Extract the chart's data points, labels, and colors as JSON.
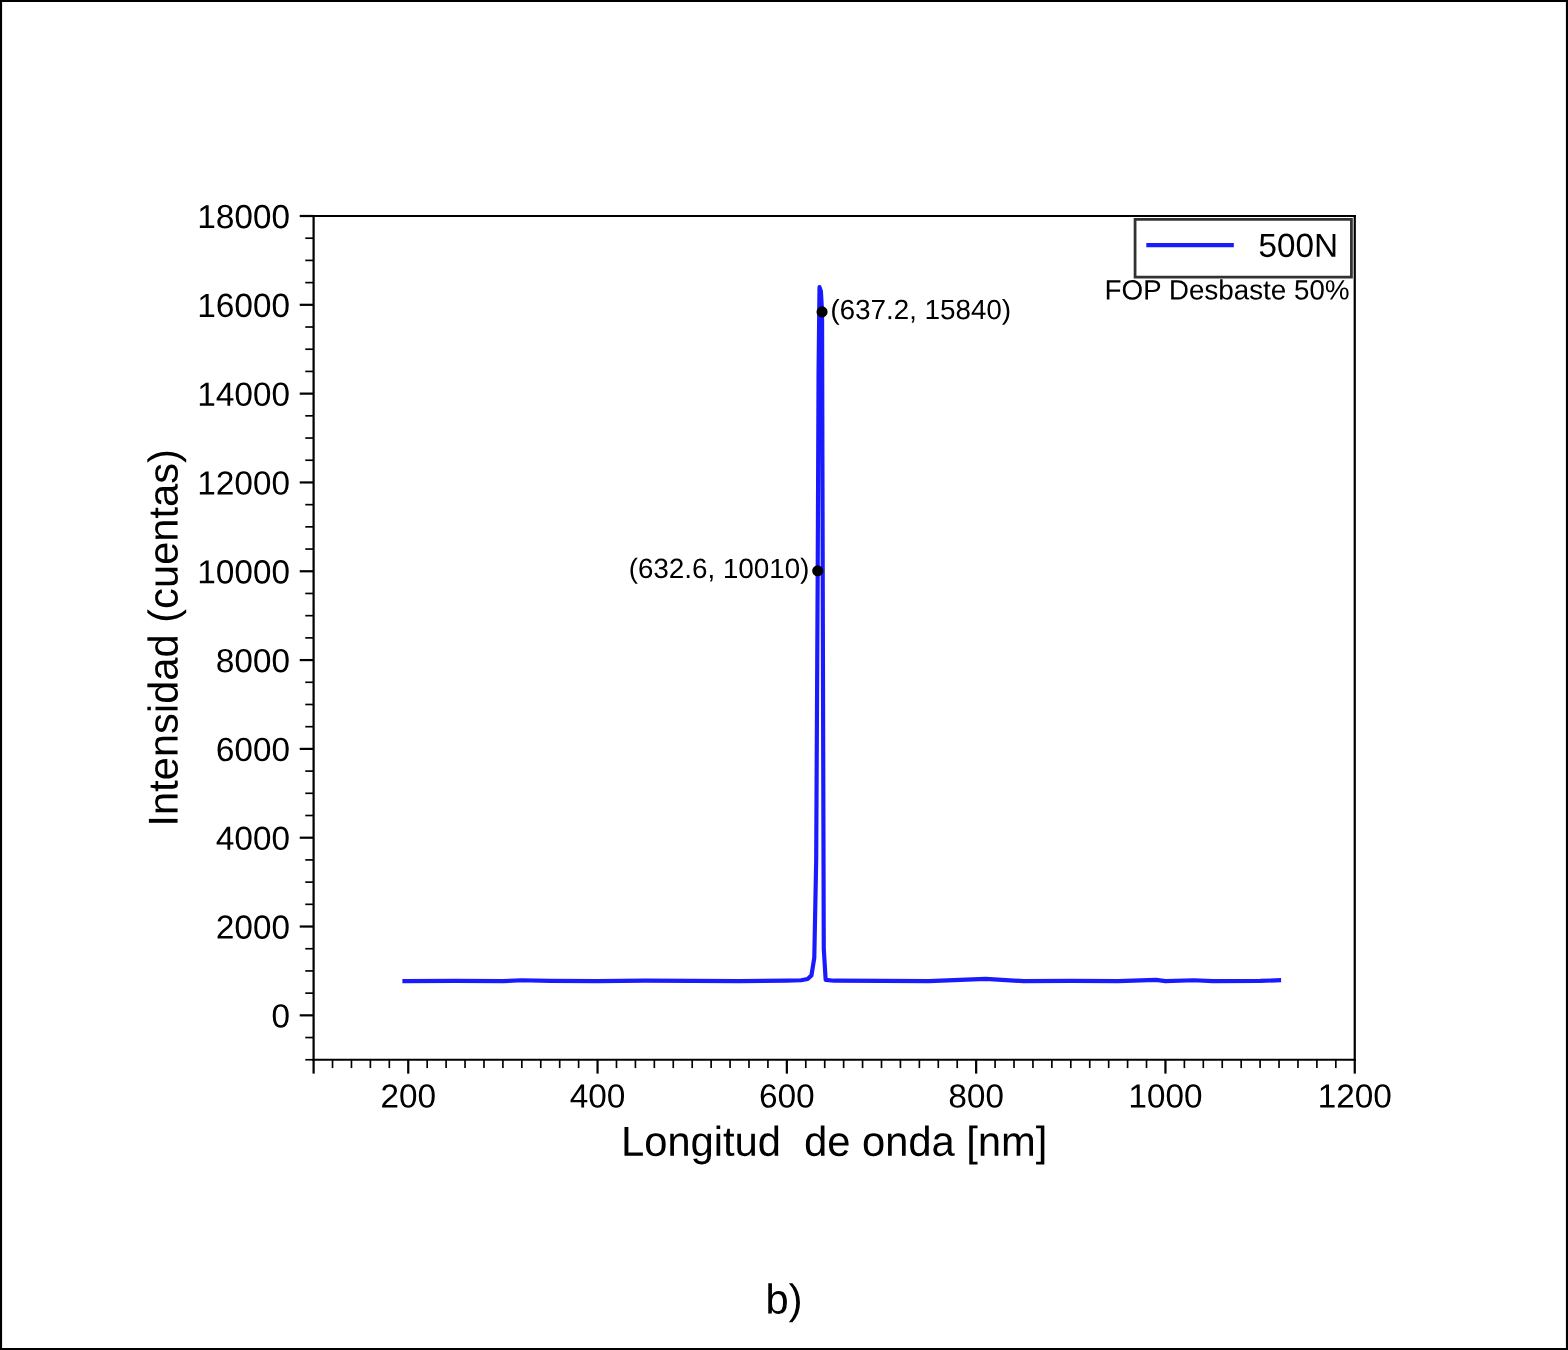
{
  "chart_data": {
    "type": "line",
    "xlabel": "Longitud  de onda [nm]",
    "ylabel": "Intensidad (cuentas)",
    "x": [
      196,
      250,
      300,
      320,
      350,
      400,
      450,
      500,
      550,
      600,
      615,
      622,
      626,
      629,
      631,
      632.6,
      633.5,
      634.5,
      636,
      637.2,
      638,
      639,
      641,
      650,
      700,
      750,
      810,
      850,
      900,
      950,
      990,
      1000,
      1030,
      1050,
      1100,
      1120
    ],
    "series": [
      {
        "name": "500N",
        "color": "#1a1aff",
        "values": [
          770,
          775,
          770,
          790,
          775,
          770,
          780,
          775,
          770,
          780,
          790,
          820,
          900,
          1300,
          3500,
          10010,
          14500,
          16400,
          16300,
          15840,
          9000,
          1500,
          800,
          780,
          775,
          770,
          820,
          770,
          775,
          770,
          800,
          770,
          790,
          770,
          775,
          790
        ]
      }
    ],
    "xlim": [
      100,
      1200
    ],
    "xticks": [
      {
        "value": 100,
        "label": null
      },
      200,
      400,
      600,
      800,
      1000,
      1200
    ],
    "ylim": [
      -1000,
      18000
    ],
    "yticks": [
      0,
      2000,
      4000,
      6000,
      8000,
      10000,
      12000,
      14000,
      16000,
      18000
    ],
    "legend": "top right",
    "grid": false,
    "annotations": [
      {
        "text": "(637.2, 15840)",
        "x": 637.2,
        "y": 15840
      },
      {
        "text": "(632.6, 10010)",
        "x": 632.6,
        "y": 10010
      },
      "FOP Desbaste 50%",
      "b)"
    ]
  }
}
